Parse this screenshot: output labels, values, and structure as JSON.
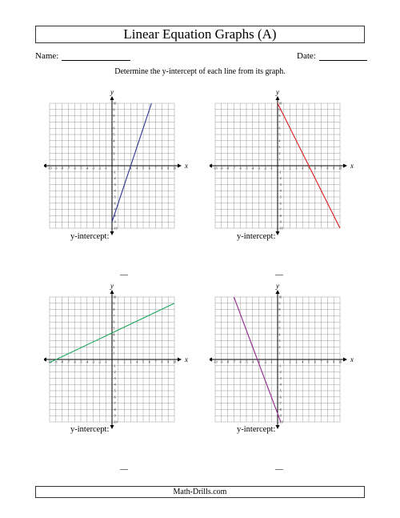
{
  "title": "Linear Equation Graphs (A)",
  "name_label": "Name:",
  "date_label": "Date:",
  "instructions": "Determine the y-intercept of each line from its graph.",
  "footer": "Math-Drills.com",
  "axis": {
    "x_label": "x",
    "y_label": "y",
    "tick_labels": [
      "-10",
      "-9",
      "-8",
      "-7",
      "-6",
      "-5",
      "-4",
      "-3",
      "-2",
      "-1",
      "1",
      "2",
      "3",
      "4",
      "5",
      "6",
      "7",
      "8",
      "9",
      "10"
    ]
  },
  "answer_prompt": "y-intercept:",
  "answer_blank": "__",
  "chart_data": [
    {
      "type": "line",
      "xlim": [
        -10,
        10
      ],
      "ylim": [
        -10,
        10
      ],
      "grid": true,
      "line_color": "#2e3192",
      "points": [
        [
          0,
          -9
        ],
        [
          6.33,
          10
        ]
      ]
    },
    {
      "type": "line",
      "xlim": [
        -10,
        10
      ],
      "ylim": [
        -10,
        10
      ],
      "grid": true,
      "line_color": "#e31e24",
      "points": [
        [
          0,
          10
        ],
        [
          10,
          -10
        ]
      ]
    },
    {
      "type": "line",
      "xlim": [
        -10,
        10
      ],
      "ylim": [
        -10,
        10
      ],
      "grid": true,
      "line_color": "#1aa65a",
      "points": [
        [
          -10,
          -0.5
        ],
        [
          10,
          9
        ]
      ]
    },
    {
      "type": "line",
      "xlim": [
        -10,
        10
      ],
      "ylim": [
        -10,
        10
      ],
      "grid": true,
      "line_color": "#92278f",
      "points": [
        [
          -7,
          10
        ],
        [
          0.5,
          -10
        ]
      ]
    }
  ]
}
